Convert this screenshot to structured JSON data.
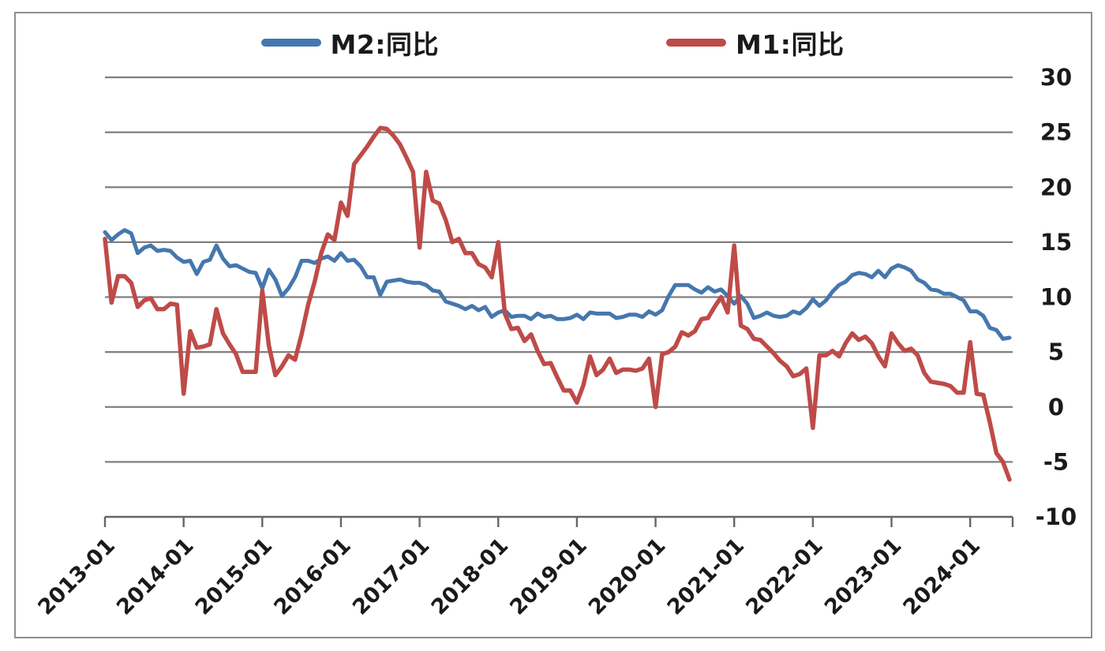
{
  "chart_data": {
    "type": "line",
    "title": "",
    "x_range": {
      "start": "2013-01",
      "end": "2024-07",
      "freq": "monthly",
      "n_points": 139
    },
    "x_tick_labels": [
      "2013-01",
      "2014-01",
      "2015-01",
      "2016-01",
      "2017-01",
      "2018-01",
      "2019-01",
      "2020-01",
      "2021-01",
      "2022-01",
      "2023-01",
      "2024-01"
    ],
    "y_ticks": [
      30,
      25,
      20,
      15,
      10,
      5,
      0,
      -5,
      -10
    ],
    "ylim": [
      -10,
      30
    ],
    "grid": "horizontal",
    "legend_position": "top",
    "series": [
      {
        "name": "M2:同比",
        "color": "#4577AE",
        "values": [
          15.9,
          15.2,
          15.7,
          16.1,
          15.8,
          14.0,
          14.5,
          14.7,
          14.2,
          14.3,
          14.2,
          13.6,
          13.2,
          13.3,
          12.1,
          13.2,
          13.4,
          14.7,
          13.5,
          12.8,
          12.9,
          12.6,
          12.3,
          12.2,
          10.8,
          12.5,
          11.6,
          10.1,
          10.8,
          11.8,
          13.3,
          13.3,
          13.1,
          13.5,
          13.7,
          13.3,
          14.0,
          13.3,
          13.4,
          12.8,
          11.8,
          11.8,
          10.2,
          11.4,
          11.5,
          11.6,
          11.4,
          11.3,
          11.3,
          11.1,
          10.6,
          10.5,
          9.6,
          9.4,
          9.2,
          8.9,
          9.2,
          8.8,
          9.1,
          8.2,
          8.6,
          8.8,
          8.2,
          8.3,
          8.3,
          8.0,
          8.5,
          8.2,
          8.3,
          8.0,
          8.0,
          8.1,
          8.4,
          8.0,
          8.6,
          8.5,
          8.5,
          8.5,
          8.1,
          8.2,
          8.4,
          8.4,
          8.2,
          8.7,
          8.4,
          8.8,
          10.1,
          11.1,
          11.1,
          11.1,
          10.7,
          10.4,
          10.9,
          10.5,
          10.7,
          10.1,
          9.4,
          10.1,
          9.4,
          8.1,
          8.3,
          8.6,
          8.3,
          8.2,
          8.3,
          8.7,
          8.5,
          9.0,
          9.8,
          9.2,
          9.7,
          10.5,
          11.1,
          11.4,
          12.0,
          12.2,
          12.1,
          11.8,
          12.4,
          11.8,
          12.6,
          12.9,
          12.7,
          12.4,
          11.6,
          11.3,
          10.7,
          10.6,
          10.3,
          10.3,
          10.0,
          9.7,
          8.7,
          8.7,
          8.3,
          7.2,
          7.0,
          6.2,
          6.3
        ]
      },
      {
        "name": "M1:同比",
        "color": "#BE4B48",
        "values": [
          15.3,
          9.5,
          11.9,
          11.9,
          11.3,
          9.1,
          9.7,
          9.9,
          8.9,
          8.9,
          9.4,
          9.3,
          1.2,
          6.9,
          5.4,
          5.5,
          5.7,
          8.9,
          6.7,
          5.7,
          4.8,
          3.2,
          3.2,
          3.2,
          10.6,
          5.6,
          2.9,
          3.7,
          4.7,
          4.3,
          6.6,
          9.3,
          11.4,
          14.0,
          15.7,
          15.2,
          18.6,
          17.4,
          22.1,
          22.9,
          23.7,
          24.6,
          25.4,
          25.3,
          24.7,
          23.9,
          22.7,
          21.4,
          14.5,
          21.4,
          18.8,
          18.5,
          17.0,
          15.0,
          15.3,
          14.0,
          14.0,
          13.0,
          12.7,
          11.8,
          15.0,
          8.5,
          7.1,
          7.2,
          6.0,
          6.6,
          5.1,
          3.9,
          4.0,
          2.7,
          1.5,
          1.5,
          0.4,
          2.0,
          4.6,
          2.9,
          3.4,
          4.4,
          3.1,
          3.4,
          3.4,
          3.3,
          3.5,
          4.4,
          0.0,
          4.8,
          5.0,
          5.5,
          6.8,
          6.5,
          6.9,
          8.0,
          8.1,
          9.1,
          10.0,
          8.6,
          14.7,
          7.4,
          7.1,
          6.2,
          6.1,
          5.5,
          4.9,
          4.2,
          3.7,
          2.8,
          3.0,
          3.5,
          -1.9,
          4.7,
          4.7,
          5.1,
          4.6,
          5.8,
          6.7,
          6.1,
          6.4,
          5.8,
          4.6,
          3.7,
          6.7,
          5.8,
          5.1,
          5.3,
          4.7,
          3.1,
          2.3,
          2.2,
          2.1,
          1.9,
          1.3,
          1.3,
          5.9,
          1.2,
          1.1,
          -1.4,
          -4.2,
          -5.0,
          -6.6
        ]
      }
    ],
    "colors": {
      "grid": "#7f7f7f",
      "axis": "#666666",
      "border": "#8f8f8f",
      "tick_label": "#1a1a1a"
    }
  },
  "legend": {
    "items": [
      {
        "label": "M2:同比",
        "color": "#4577AE"
      },
      {
        "label": "M1:同比",
        "color": "#BE4B48"
      }
    ]
  }
}
